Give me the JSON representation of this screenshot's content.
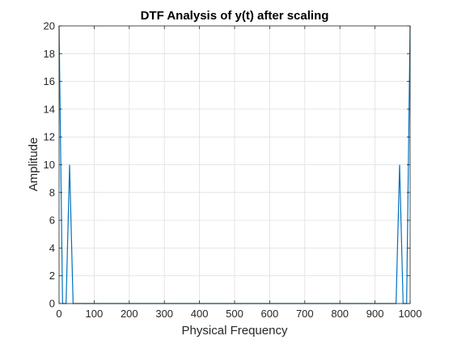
{
  "chart_data": {
    "type": "line",
    "title": "DTF Analysis of y(t) after scaling",
    "xlabel": "Physical Frequency",
    "ylabel": "Amplitude",
    "xlim": [
      0,
      1000
    ],
    "ylim": [
      0,
      20
    ],
    "xticks": [
      0,
      100,
      200,
      300,
      400,
      500,
      600,
      700,
      800,
      900,
      1000
    ],
    "yticks": [
      0,
      2,
      4,
      6,
      8,
      10,
      12,
      14,
      16,
      18,
      20
    ],
    "grid": true,
    "series": [
      {
        "color": "#0072BD",
        "x": [
          0,
          10,
          20,
          30,
          40,
          50,
          950,
          960,
          970,
          980,
          990,
          1000
        ],
        "y": [
          20,
          0,
          0,
          10,
          0,
          0,
          0,
          0,
          10,
          0,
          0,
          20
        ]
      }
    ]
  }
}
